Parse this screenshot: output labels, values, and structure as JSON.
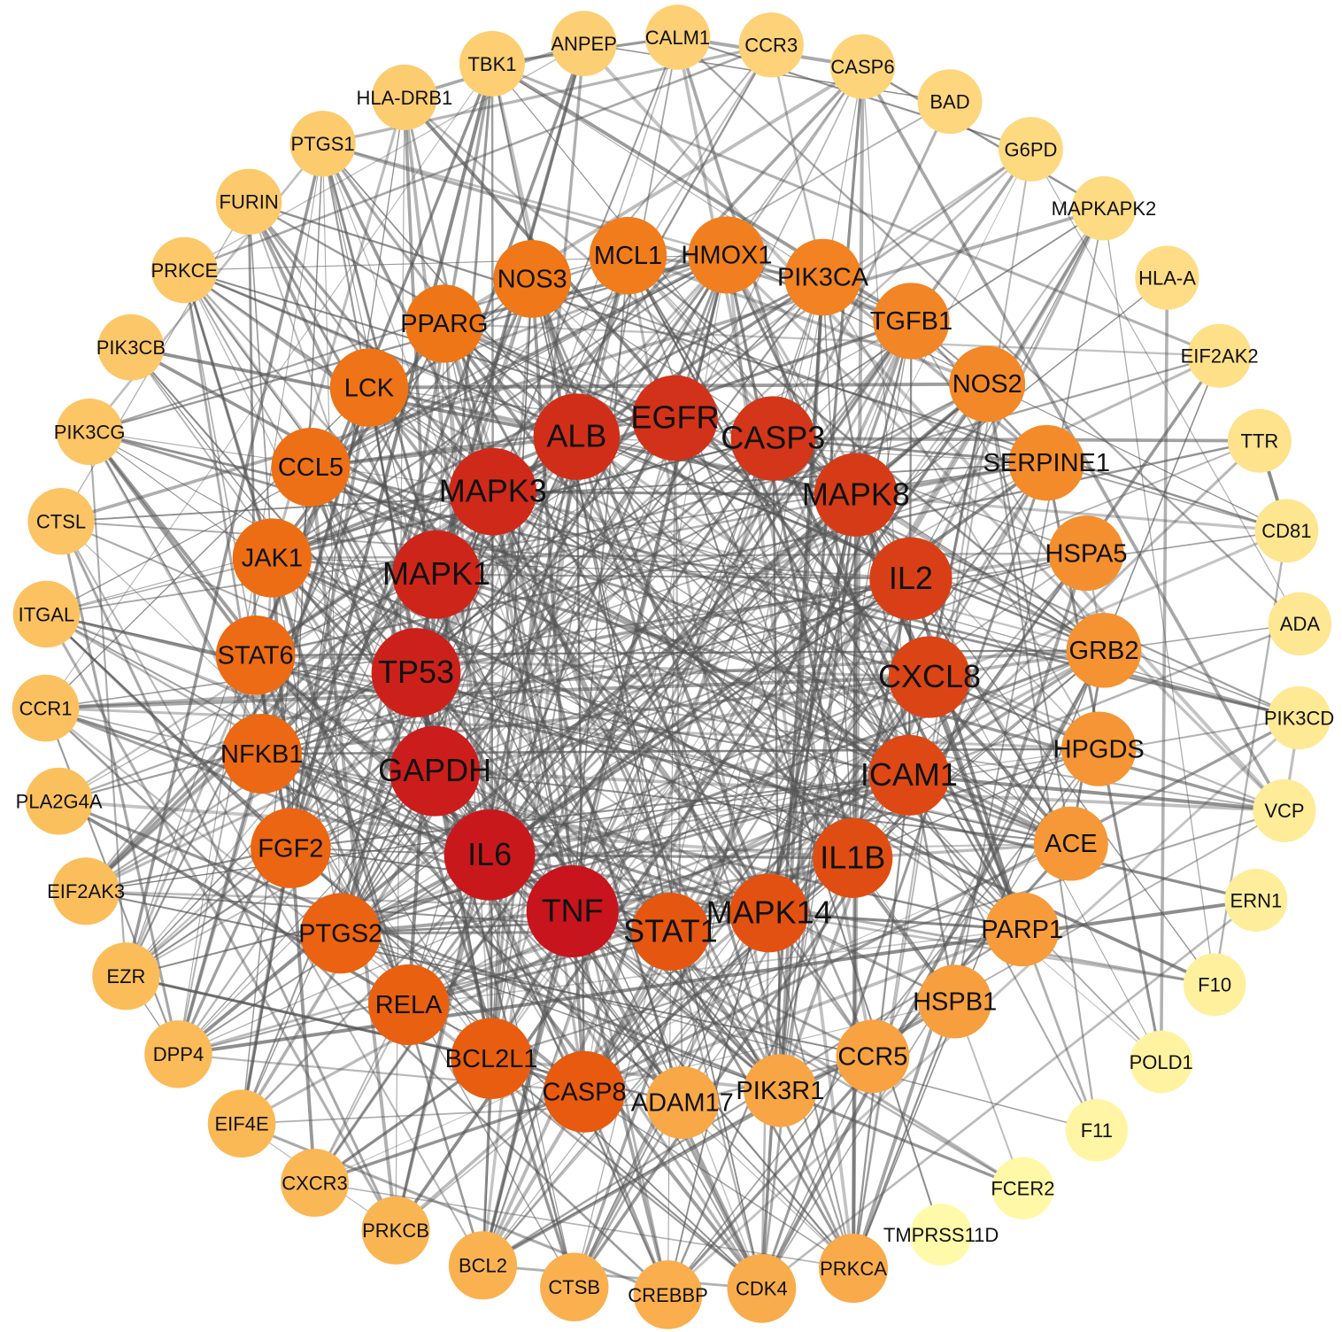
{
  "rings": [
    {
      "nodes": [
        "TNF",
        "IL6",
        "GAPDH",
        "TP53",
        "MAPK1",
        "MAPK3",
        "ALB",
        "EGFR",
        "CASP3",
        "MAPK8",
        "IL2",
        "CXCL8",
        "ICAM1",
        "IL1B",
        "MAPK14",
        "STAT1"
      ]
    },
    {
      "nodes": [
        "CASP8",
        "BCL2L1",
        "RELA",
        "PTGS2",
        "FGF2",
        "NFKB1",
        "STAT6",
        "JAK1",
        "CCL5",
        "LCK",
        "PPARG",
        "NOS3",
        "MCL1",
        "HMOX1",
        "PIK3CA",
        "TGFB1",
        "NOS2",
        "SERPINE1",
        "HSPA5",
        "GRB2",
        "HPGDS",
        "ACE",
        "PARP1",
        "HSPB1",
        "CCR5",
        "PIK3R1",
        "ADAM17"
      ]
    },
    {
      "nodes": [
        "PRKCA",
        "CDK4",
        "CREBBP",
        "CTSB",
        "BCL2",
        "PRKCB",
        "CXCR3",
        "EIF4E",
        "DPP4",
        "EZR",
        "EIF2AK3",
        "PLA2G4A",
        "CCR1",
        "ITGAL",
        "CTSL",
        "PIK3CG",
        "PIK3CB",
        "PRKCE",
        "FURIN",
        "PTGS1",
        "HLA-DRB1",
        "TBK1",
        "ANPEP",
        "CALM1",
        "CCR3",
        "CASP6",
        "BAD",
        "G6PD",
        "MAPKAPK2",
        "HLA-A",
        "EIF2AK2",
        "TTR",
        "CD81",
        "ADA",
        "PIK3CD",
        "VCP",
        "ERN1",
        "F10",
        "POLD1",
        "F11",
        "FCER2",
        "TMPRSS11D"
      ]
    }
  ]
}
